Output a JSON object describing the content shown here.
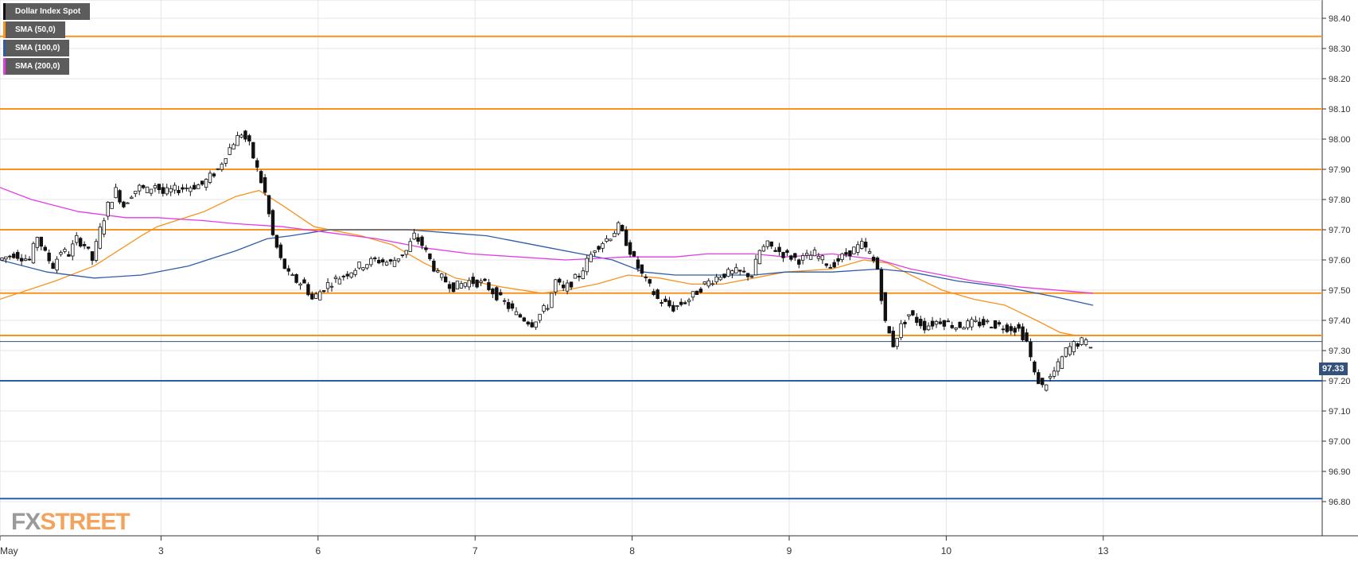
{
  "legend": [
    {
      "label": "Dollar Index Spot",
      "color": "#111111"
    },
    {
      "label": "SMA (50,0)",
      "color": "#f7931e"
    },
    {
      "label": "SMA (100,0)",
      "color": "#2e5da8"
    },
    {
      "label": "SMA (200,0)",
      "color": "#e23ce6"
    }
  ],
  "watermark": {
    "part1": "FX",
    "part2": "STREET"
  },
  "current_price_label": "97.33",
  "chart_data": {
    "type": "candlestick",
    "title": "Dollar Index Spot",
    "ylim": [
      96.8,
      98.45
    ],
    "x_range_days": [
      2,
      14.5
    ],
    "grid": true,
    "legend_position": "top-left",
    "y_ticks": [
      96.8,
      96.9,
      97.0,
      97.1,
      97.2,
      97.3,
      97.4,
      97.5,
      97.6,
      97.7,
      97.8,
      97.9,
      98.0,
      98.1,
      98.2,
      98.3,
      98.4
    ],
    "y_tick_labels": [
      "96.80",
      "96.90",
      "97.00",
      "97.10",
      "97.20",
      "97.30",
      "97.40",
      "97.50",
      "97.60",
      "97.70",
      "97.80",
      "97.90",
      "98.00",
      "98.10",
      "98.20",
      "98.30",
      "98.40"
    ],
    "x_ticks": [
      {
        "label": "May",
        "day": 2.0
      },
      {
        "label": "3",
        "day": 3.0
      },
      {
        "label": "6",
        "day": 4.0
      },
      {
        "label": "7",
        "day": 5.0
      },
      {
        "label": "8",
        "day": 6.0
      },
      {
        "label": "9",
        "day": 7.0
      },
      {
        "label": "10",
        "day": 8.0
      },
      {
        "label": "13",
        "day": 9.0
      }
    ],
    "horizontal_levels": [
      {
        "value": 98.34,
        "color": "#f7931e"
      },
      {
        "value": 98.1,
        "color": "#f7931e"
      },
      {
        "value": 97.9,
        "color": "#f7931e"
      },
      {
        "value": 97.7,
        "color": "#f7931e"
      },
      {
        "value": 97.49,
        "color": "#f7931e"
      },
      {
        "value": 97.35,
        "color": "#f7931e"
      },
      {
        "value": 97.2,
        "color": "#2e5da8"
      },
      {
        "value": 96.81,
        "color": "#2e5da8"
      }
    ],
    "current_price": {
      "value": 97.33,
      "color": "#34517a"
    },
    "price_series": [
      [
        2.0,
        97.6
      ],
      [
        2.1,
        97.62
      ],
      [
        2.2,
        97.6
      ],
      [
        2.25,
        97.68
      ],
      [
        2.3,
        97.62
      ],
      [
        2.35,
        97.58
      ],
      [
        2.4,
        97.63
      ],
      [
        2.45,
        97.62
      ],
      [
        2.5,
        97.67
      ],
      [
        2.55,
        97.65
      ],
      [
        2.6,
        97.6
      ],
      [
        2.65,
        97.7
      ],
      [
        2.7,
        97.78
      ],
      [
        2.75,
        97.83
      ],
      [
        2.8,
        97.78
      ],
      [
        2.85,
        97.82
      ],
      [
        2.9,
        97.84
      ],
      [
        2.95,
        97.83
      ],
      [
        3.0,
        97.85
      ],
      [
        3.05,
        97.82
      ],
      [
        3.1,
        97.83
      ],
      [
        3.2,
        97.84
      ],
      [
        3.3,
        97.85
      ],
      [
        3.4,
        97.9
      ],
      [
        3.45,
        97.95
      ],
      [
        3.5,
        97.99
      ],
      [
        3.55,
        98.02
      ],
      [
        3.6,
        97.98
      ],
      [
        3.65,
        97.9
      ],
      [
        3.7,
        97.82
      ],
      [
        3.75,
        97.68
      ],
      [
        3.8,
        97.6
      ],
      [
        3.85,
        97.55
      ],
      [
        3.9,
        97.53
      ],
      [
        3.95,
        97.52
      ],
      [
        4.0,
        97.47
      ],
      [
        4.1,
        97.52
      ],
      [
        4.2,
        97.55
      ],
      [
        4.3,
        97.58
      ],
      [
        4.4,
        97.6
      ],
      [
        4.5,
        97.59
      ],
      [
        4.6,
        97.63
      ],
      [
        4.65,
        97.68
      ],
      [
        4.7,
        97.65
      ],
      [
        4.8,
        97.55
      ],
      [
        4.9,
        97.51
      ],
      [
        5.0,
        97.53
      ],
      [
        5.1,
        97.52
      ],
      [
        5.2,
        97.47
      ],
      [
        5.3,
        97.42
      ],
      [
        5.4,
        97.39
      ],
      [
        5.5,
        97.45
      ],
      [
        5.55,
        97.53
      ],
      [
        5.6,
        97.5
      ],
      [
        5.7,
        97.55
      ],
      [
        5.8,
        97.64
      ],
      [
        5.9,
        97.68
      ],
      [
        5.95,
        97.71
      ],
      [
        6.0,
        97.66
      ],
      [
        6.05,
        97.6
      ],
      [
        6.1,
        97.55
      ],
      [
        6.2,
        97.47
      ],
      [
        6.3,
        97.44
      ],
      [
        6.4,
        97.47
      ],
      [
        6.5,
        97.52
      ],
      [
        6.6,
        97.55
      ],
      [
        6.7,
        97.56
      ],
      [
        6.8,
        97.55
      ],
      [
        6.85,
        97.63
      ],
      [
        6.9,
        97.65
      ],
      [
        7.0,
        97.62
      ],
      [
        7.1,
        97.6
      ],
      [
        7.2,
        97.62
      ],
      [
        7.3,
        97.58
      ],
      [
        7.4,
        97.62
      ],
      [
        7.5,
        97.65
      ],
      [
        7.55,
        97.62
      ],
      [
        7.6,
        97.57
      ],
      [
        7.65,
        97.39
      ],
      [
        7.7,
        97.32
      ],
      [
        7.75,
        97.38
      ],
      [
        7.8,
        97.42
      ],
      [
        7.9,
        97.38
      ],
      [
        8.0,
        97.4
      ],
      [
        8.1,
        97.38
      ],
      [
        8.2,
        97.39
      ],
      [
        8.3,
        97.39
      ],
      [
        8.4,
        97.38
      ],
      [
        8.5,
        97.37
      ],
      [
        8.55,
        97.33
      ],
      [
        8.6,
        97.22
      ],
      [
        8.65,
        97.18
      ],
      [
        8.7,
        97.21
      ],
      [
        8.75,
        97.25
      ],
      [
        8.8,
        97.3
      ],
      [
        8.85,
        97.32
      ],
      [
        8.9,
        97.33
      ],
      [
        8.96,
        97.32
      ]
    ],
    "series": [
      {
        "name": "SMA (50,0)",
        "color": "#f7931e",
        "points": [
          [
            2.0,
            97.47
          ],
          [
            2.35,
            97.53
          ],
          [
            2.6,
            97.58
          ],
          [
            2.9,
            97.68
          ],
          [
            3.0,
            97.71
          ],
          [
            3.3,
            97.76
          ],
          [
            3.5,
            97.81
          ],
          [
            3.65,
            97.83
          ],
          [
            3.8,
            97.78
          ],
          [
            4.0,
            97.71
          ],
          [
            4.3,
            97.68
          ],
          [
            4.5,
            97.65
          ],
          [
            4.7,
            97.59
          ],
          [
            4.9,
            97.54
          ],
          [
            5.2,
            97.51
          ],
          [
            5.45,
            97.49
          ],
          [
            5.6,
            97.5
          ],
          [
            5.8,
            97.52
          ],
          [
            6.0,
            97.55
          ],
          [
            6.2,
            97.54
          ],
          [
            6.4,
            97.52
          ],
          [
            6.6,
            97.52
          ],
          [
            6.8,
            97.54
          ],
          [
            7.0,
            97.56
          ],
          [
            7.3,
            97.57
          ],
          [
            7.5,
            97.6
          ],
          [
            7.65,
            97.59
          ],
          [
            7.8,
            97.55
          ],
          [
            8.0,
            97.5
          ],
          [
            8.2,
            97.47
          ],
          [
            8.4,
            97.45
          ],
          [
            8.6,
            97.4
          ],
          [
            8.75,
            97.36
          ],
          [
            8.85,
            97.35
          ],
          [
            8.96,
            97.35
          ]
        ]
      },
      {
        "name": "SMA (100,0)",
        "color": "#2e5da8",
        "points": [
          [
            2.0,
            97.6
          ],
          [
            2.3,
            97.56
          ],
          [
            2.6,
            97.54
          ],
          [
            2.9,
            97.55
          ],
          [
            3.2,
            97.58
          ],
          [
            3.5,
            97.63
          ],
          [
            3.7,
            97.67
          ],
          [
            3.85,
            97.68
          ],
          [
            4.1,
            97.7
          ],
          [
            4.3,
            97.7
          ],
          [
            4.6,
            97.7
          ],
          [
            4.85,
            97.69
          ],
          [
            5.1,
            97.68
          ],
          [
            5.3,
            97.66
          ],
          [
            5.5,
            97.64
          ],
          [
            5.7,
            97.62
          ],
          [
            5.9,
            97.6
          ],
          [
            6.1,
            97.56
          ],
          [
            6.3,
            97.55
          ],
          [
            6.6,
            97.55
          ],
          [
            6.8,
            97.55
          ],
          [
            7.0,
            97.56
          ],
          [
            7.3,
            97.56
          ],
          [
            7.6,
            97.57
          ],
          [
            7.8,
            97.56
          ],
          [
            8.1,
            97.53
          ],
          [
            8.4,
            97.51
          ],
          [
            8.7,
            97.48
          ],
          [
            8.96,
            97.45
          ]
        ]
      },
      {
        "name": "SMA (200,0)",
        "color": "#e23ce6",
        "points": [
          [
            2.0,
            97.84
          ],
          [
            2.2,
            97.8
          ],
          [
            2.5,
            97.76
          ],
          [
            2.8,
            97.74
          ],
          [
            3.0,
            97.74
          ],
          [
            3.3,
            97.73
          ],
          [
            3.5,
            97.72
          ],
          [
            3.8,
            97.71
          ],
          [
            4.1,
            97.69
          ],
          [
            4.4,
            97.67
          ],
          [
            4.7,
            97.64
          ],
          [
            5.0,
            97.62
          ],
          [
            5.3,
            97.61
          ],
          [
            5.6,
            97.6
          ],
          [
            6.0,
            97.61
          ],
          [
            6.3,
            97.61
          ],
          [
            6.5,
            97.62
          ],
          [
            6.8,
            97.62
          ],
          [
            7.0,
            97.61
          ],
          [
            7.3,
            97.62
          ],
          [
            7.6,
            97.6
          ],
          [
            7.8,
            97.57
          ],
          [
            8.0,
            97.55
          ],
          [
            8.2,
            97.53
          ],
          [
            8.5,
            97.51
          ],
          [
            8.96,
            97.49
          ]
        ]
      }
    ]
  }
}
